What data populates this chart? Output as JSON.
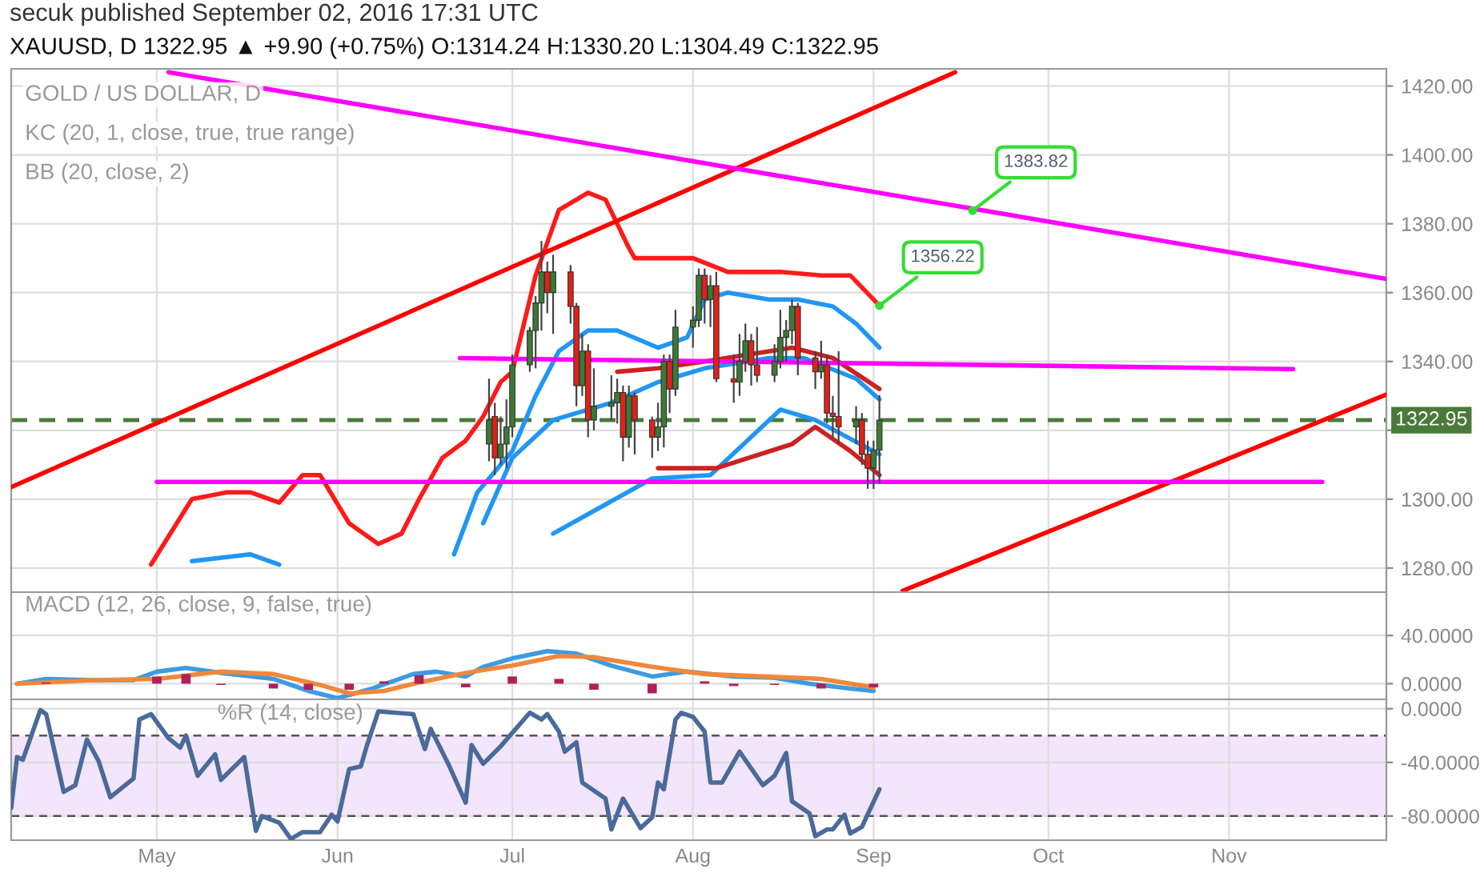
{
  "chart_data": [
    {
      "type": "candlestick",
      "title": "secuk published September 02, 2016 17:31 UTC",
      "subtitle": "XAUUSD, D 1322.95 ▲ +9.90 (+0.75%) O:1314.24 H:1330.20 L:1304.49 C:1322.95",
      "annotations": [
        "GOLD / US DOLLAR, D",
        "KC (20, 1, close, true, true range)",
        "BB (20, close, 2)",
        {
          "text": "1356.22",
          "x": "2016-09-02",
          "y": 1356.22
        },
        {
          "text": "1383.82",
          "x": "2016-09-18",
          "y": 1383.82
        }
      ],
      "x": [
        "2016-06-27",
        "2016-06-28",
        "2016-06-29",
        "2016-06-30",
        "2016-07-01",
        "2016-07-04",
        "2016-07-05",
        "2016-07-06",
        "2016-07-07",
        "2016-07-08",
        "2016-07-11",
        "2016-07-12",
        "2016-07-13",
        "2016-07-14",
        "2016-07-15",
        "2016-07-18",
        "2016-07-19",
        "2016-07-20",
        "2016-07-21",
        "2016-07-22",
        "2016-07-25",
        "2016-07-26",
        "2016-07-27",
        "2016-07-28",
        "2016-07-29",
        "2016-08-01",
        "2016-08-02",
        "2016-08-03",
        "2016-08-04",
        "2016-08-05",
        "2016-08-08",
        "2016-08-09",
        "2016-08-10",
        "2016-08-11",
        "2016-08-12",
        "2016-08-15",
        "2016-08-16",
        "2016-08-17",
        "2016-08-18",
        "2016-08-19",
        "2016-08-22",
        "2016-08-23",
        "2016-08-24",
        "2016-08-25",
        "2016-08-26",
        "2016-08-29",
        "2016-08-30",
        "2016-08-31",
        "2016-09-01",
        "2016-09-02"
      ],
      "ohlc": [
        [
          1316,
          1335,
          1311,
          1323
        ],
        [
          1324,
          1328,
          1307,
          1312
        ],
        [
          1312,
          1324,
          1310,
          1316
        ],
        [
          1316,
          1329,
          1309,
          1321
        ],
        [
          1321,
          1342,
          1318,
          1339
        ],
        [
          1339,
          1350,
          1337,
          1349
        ],
        [
          1349,
          1359,
          1338,
          1357
        ],
        [
          1357,
          1375,
          1349,
          1366
        ],
        [
          1366,
          1369,
          1354,
          1360
        ],
        [
          1360,
          1371,
          1348,
          1366
        ],
        [
          1366,
          1368,
          1351,
          1356
        ],
        [
          1356,
          1357,
          1327,
          1333
        ],
        [
          1333,
          1348,
          1330,
          1343
        ],
        [
          1343,
          1345,
          1318,
          1323
        ],
        [
          1323,
          1338,
          1320,
          1327
        ],
        [
          1327,
          1336,
          1323,
          1328
        ],
        [
          1328,
          1335,
          1322,
          1331
        ],
        [
          1331,
          1333,
          1311,
          1318
        ],
        [
          1318,
          1333,
          1315,
          1330
        ],
        [
          1330,
          1331,
          1313,
          1323
        ],
        [
          1323,
          1324,
          1312,
          1318
        ],
        [
          1318,
          1328,
          1314,
          1321
        ],
        [
          1321,
          1342,
          1315,
          1340
        ],
        [
          1340,
          1342,
          1325,
          1332
        ],
        [
          1332,
          1355,
          1330,
          1350
        ],
        [
          1350,
          1356,
          1344,
          1352
        ],
        [
          1352,
          1367,
          1350,
          1365
        ],
        [
          1365,
          1367,
          1351,
          1358
        ],
        [
          1358,
          1365,
          1350,
          1362
        ],
        [
          1362,
          1366,
          1334,
          1335
        ],
        [
          1335,
          1342,
          1328,
          1334
        ],
        [
          1334,
          1348,
          1330,
          1340
        ],
        [
          1340,
          1351,
          1337,
          1346
        ],
        [
          1346,
          1348,
          1333,
          1339
        ],
        [
          1339,
          1350,
          1334,
          1336
        ],
        [
          1336,
          1345,
          1334,
          1340
        ],
        [
          1340,
          1355,
          1338,
          1347
        ],
        [
          1347,
          1352,
          1340,
          1349
        ],
        [
          1349,
          1358,
          1345,
          1356
        ],
        [
          1356,
          1357,
          1336,
          1341
        ],
        [
          1341,
          1343,
          1332,
          1337
        ],
        [
          1337,
          1346,
          1335,
          1339
        ],
        [
          1339,
          1342,
          1322,
          1325
        ],
        [
          1325,
          1330,
          1318,
          1324
        ],
        [
          1324,
          1343,
          1316,
          1321
        ],
        [
          1321,
          1327,
          1316,
          1323
        ],
        [
          1323,
          1325,
          1310,
          1313
        ],
        [
          1313,
          1317,
          1303,
          1309
        ],
        [
          1309,
          1317,
          1303,
          1314.24
        ],
        [
          1314.24,
          1330.2,
          1304.49,
          1322.95
        ]
      ],
      "colors": [
        "#3c7a34",
        "#e32017",
        "#3c7a34",
        "#3c7a34",
        "#3c7a34",
        "#3c7a34",
        "#3c7a34",
        "#3c7a34",
        "#e32017",
        "#3c7a34",
        "#e32017",
        "#e32017",
        "#3c7a34",
        "#e32017",
        "#3c7a34",
        "#3c7a34",
        "#3c7a34",
        "#e32017",
        "#3c7a34",
        "#e32017",
        "#e32017",
        "#3c7a34",
        "#3c7a34",
        "#e32017",
        "#3c7a34",
        "#3c7a34",
        "#3c7a34",
        "#e32017",
        "#3c7a34",
        "#e32017",
        "#e32017",
        "#3c7a34",
        "#3c7a34",
        "#e32017",
        "#e32017",
        "#3c7a34",
        "#3c7a34",
        "#3c7a34",
        "#3c7a34",
        "#e32017",
        "#e32017",
        "#3c7a34",
        "#e32017",
        "#e32017",
        "#e32017",
        "#3c7a34",
        "#e32017",
        "#e32017",
        "#3c7a34",
        "#3c7a34"
      ],
      "series": [
        {
          "type": "line",
          "color": "#ff1a1a",
          "x": [
            "2016-04-30",
            "2016-05-07",
            "2016-05-13",
            "2016-05-17",
            "2016-05-22",
            "2016-05-26",
            "2016-05-29",
            "2016-06-03",
            "2016-06-08",
            "2016-06-12",
            "2016-06-15",
            "2016-06-19",
            "2016-06-23",
            "2016-06-26",
            "2016-06-29",
            "2016-07-01",
            "2016-07-05",
            "2016-07-09",
            "2016-07-14",
            "2016-07-17",
            "2016-07-21",
            "2016-07-22",
            "2016-08-01",
            "2016-08-07",
            "2016-08-16",
            "2016-08-23",
            "2016-08-28",
            "2016-09-02"
          ],
          "values": [
            1281,
            1300,
            1302,
            1302,
            1299,
            1307,
            1307,
            1293,
            1287,
            1290,
            1300,
            1312,
            1317,
            1324,
            1334,
            1337,
            1365,
            1384,
            1389,
            1387,
            1373,
            1370,
            1370,
            1366,
            1366,
            1365,
            1365,
            1356.22
          ]
        },
        {
          "type": "line",
          "color": "#2196f3",
          "x": [
            "2016-05-07",
            "2016-05-17",
            "2016-05-22",
            "2016-06-01",
            "2016-06-21",
            "2016-06-25",
            "2016-06-29",
            "2016-07-01",
            "2016-07-05",
            "2016-07-09",
            "2016-07-14",
            "2016-07-19",
            "2016-07-26",
            "2016-07-31",
            "2016-08-03",
            "2016-08-07",
            "2016-08-14",
            "2016-08-19",
            "2016-08-25",
            "2016-08-29",
            "2016-09-02"
          ],
          "values": [
            1282,
            1284,
            1281,
            null,
            1284,
            1302,
            1310,
            1314,
            1330,
            1343,
            1349,
            1349,
            1344,
            1347,
            1358,
            1360,
            1358,
            1358,
            1356,
            1351,
            1344
          ]
        },
        {
          "type": "line",
          "color": "#2196f3",
          "x": [
            "2016-06-26",
            "2016-07-01",
            "2016-07-08",
            "2016-07-18",
            "2016-07-26",
            "2016-08-03",
            "2016-08-14",
            "2016-08-20",
            "2016-08-29",
            "2016-09-02"
          ],
          "values": [
            1293,
            1312,
            1323,
            1328,
            1334,
            1338,
            1341,
            1341,
            1335,
            1329
          ]
        },
        {
          "type": "line",
          "color": "#2196f3",
          "x": [
            "2016-07-08",
            "2016-07-25",
            "2016-08-04",
            "2016-08-16",
            "2016-08-22",
            "2016-09-02"
          ],
          "values": [
            1290,
            1306,
            1307,
            1326,
            1323,
            1313
          ]
        },
        {
          "type": "line",
          "color": "#cc2222",
          "x": [
            "2016-07-19",
            "2016-07-26",
            "2016-08-03",
            "2016-08-18",
            "2016-08-25",
            "2016-09-02"
          ],
          "values": [
            1337,
            1338,
            1340,
            1344,
            1341,
            1332
          ]
        },
        {
          "type": "line",
          "color": "#cc2222",
          "x": [
            "2016-07-26",
            "2016-08-05",
            "2016-08-18",
            "2016-08-22",
            "2016-08-28",
            "2016-09-02"
          ],
          "values": [
            1309,
            1309,
            1316,
            1321,
            1314,
            1307
          ]
        },
        {
          "type": "line",
          "color": "#ff0000",
          "x": [
            "2016-04-06",
            "2016-09-15"
          ],
          "values": [
            1303.5,
            1424
          ]
        },
        {
          "type": "line",
          "color": "#ff0000",
          "x": [
            "2016-09-06",
            "2016-11-28"
          ],
          "values": [
            1273.4,
            1330.4
          ]
        },
        {
          "type": "line",
          "color": "#ff00ff",
          "x": [
            "2016-05-03",
            "2016-11-28"
          ],
          "values": [
            1424,
            1364
          ]
        },
        {
          "type": "line",
          "color": "#ff00ff",
          "x": [
            "2016-06-22",
            "2016-11-12"
          ],
          "values": [
            1341,
            1337.8
          ]
        },
        {
          "type": "line",
          "color": "#ff00ff",
          "x": [
            "2016-05-01",
            "2016-11-17"
          ],
          "values": [
            1305,
            1305
          ]
        }
      ],
      "ref_lines": [
        {
          "axis": "y",
          "value": 1322.95,
          "label": "1322.95",
          "color": "#4a7a3a",
          "line_style": "dashed"
        }
      ],
      "xlim": [
        "2016-04-06",
        "2016-11-28"
      ],
      "ylim": [
        1273,
        1425
      ],
      "yticks": [
        {
          "value": 1280,
          "label": "1280.00"
        },
        {
          "value": 1300,
          "label": "1300.00"
        },
        {
          "value": 1320,
          "label": null
        },
        {
          "value": 1340,
          "label": "1340.00"
        },
        {
          "value": 1360,
          "label": "1360.00"
        },
        {
          "value": 1380,
          "label": "1380.00"
        },
        {
          "value": 1400,
          "label": "1400.00"
        },
        {
          "value": 1420,
          "label": "1420.00"
        }
      ],
      "xticks": [
        {
          "value": "2016-05-01",
          "label": null
        },
        {
          "value": "2016-06-01",
          "label": null
        },
        {
          "value": "2016-07-01",
          "label": null
        },
        {
          "value": "2016-08-01",
          "label": null
        },
        {
          "value": "2016-09-01",
          "label": null
        },
        {
          "value": "2016-10-01",
          "label": null
        },
        {
          "value": "2016-11-01",
          "label": null
        }
      ],
      "tick_labels": "y",
      "grid": true
    },
    {
      "type": "line",
      "annotations": [
        "MACD (12, 26, close, 9, false, true)"
      ],
      "series": [
        {
          "type": "bar",
          "color": "#b0205a",
          "x": [
            "2016-04-12",
            "2016-05-01",
            "2016-05-06",
            "2016-05-12",
            "2016-05-21",
            "2016-05-27",
            "2016-06-03",
            "2016-06-09",
            "2016-06-15",
            "2016-06-23",
            "2016-07-01",
            "2016-07-09",
            "2016-07-15",
            "2016-07-25",
            "2016-08-03",
            "2016-08-08",
            "2016-08-15",
            "2016-08-23",
            "2016-09-01"
          ],
          "values": [
            1,
            6,
            8,
            -1,
            -4,
            -5,
            -5,
            2,
            7,
            -3,
            6,
            4,
            -5,
            -8,
            2,
            -2,
            -1,
            -4,
            -3
          ]
        },
        {
          "type": "line",
          "color": "#3d9be0",
          "x": [
            "2016-04-07",
            "2016-04-12",
            "2016-04-20",
            "2016-04-27",
            "2016-05-01",
            "2016-05-06",
            "2016-05-12",
            "2016-05-21",
            "2016-05-27",
            "2016-06-01",
            "2016-06-07",
            "2016-06-14",
            "2016-06-18",
            "2016-06-23",
            "2016-06-26",
            "2016-07-01",
            "2016-07-07",
            "2016-07-12",
            "2016-07-18",
            "2016-07-25",
            "2016-07-31",
            "2016-08-08",
            "2016-08-15",
            "2016-08-21",
            "2016-08-28",
            "2016-09-01"
          ],
          "values": [
            0,
            4,
            3,
            3,
            10,
            13,
            9,
            4,
            -6,
            -12,
            -4,
            8,
            10,
            6,
            14,
            21,
            27,
            25,
            15,
            6,
            10,
            6,
            5,
            0,
            -4,
            -6
          ]
        },
        {
          "type": "line",
          "color": "#f0883a",
          "x": [
            "2016-04-07",
            "2016-04-20",
            "2016-05-01",
            "2016-05-12",
            "2016-05-21",
            "2016-05-29",
            "2016-06-03",
            "2016-06-09",
            "2016-06-15",
            "2016-06-23",
            "2016-07-01",
            "2016-07-09",
            "2016-07-15",
            "2016-07-25",
            "2016-08-03",
            "2016-08-13",
            "2016-08-23",
            "2016-09-01"
          ],
          "values": [
            0,
            3,
            4,
            10,
            8,
            -1,
            -8,
            -6,
            1,
            9,
            15,
            23,
            22,
            14,
            8,
            6,
            4,
            -3
          ]
        }
      ],
      "xlim": [
        "2016-04-06",
        "2016-11-28"
      ],
      "ylim": [
        -13,
        76
      ],
      "yticks": [
        {
          "value": 0,
          "label": "0.0000"
        },
        {
          "value": 40,
          "label": "40.0000"
        }
      ],
      "xticks": [
        {
          "value": "2016-05-01",
          "label": null
        },
        {
          "value": "2016-06-01",
          "label": null
        },
        {
          "value": "2016-07-01",
          "label": null
        },
        {
          "value": "2016-08-01",
          "label": null
        },
        {
          "value": "2016-09-01",
          "label": null
        },
        {
          "value": "2016-10-01",
          "label": null
        },
        {
          "value": "2016-11-01",
          "label": null
        }
      ],
      "tick_labels": "y",
      "grid": true
    },
    {
      "type": "line",
      "annotations": [
        "%R (14, close)"
      ],
      "series": [
        {
          "type": "line",
          "color": "#4a6a9a",
          "x": [
            "2016-04-06",
            "2016-04-07",
            "2016-04-08",
            "2016-04-11",
            "2016-04-12",
            "2016-04-15",
            "2016-04-17",
            "2016-04-19",
            "2016-04-21",
            "2016-04-23",
            "2016-04-27",
            "2016-04-28",
            "2016-04-30",
            "2016-05-03",
            "2016-05-05",
            "2016-05-06",
            "2016-05-08",
            "2016-05-11",
            "2016-05-12",
            "2016-05-16",
            "2016-05-18",
            "2016-05-19",
            "2016-05-22",
            "2016-05-24",
            "2016-05-26",
            "2016-05-29",
            "2016-05-31",
            "2016-06-01",
            "2016-06-03",
            "2016-06-05",
            "2016-06-06",
            "2016-06-08",
            "2016-06-14",
            "2016-06-16",
            "2016-06-17",
            "2016-06-20",
            "2016-06-23",
            "2016-06-24",
            "2016-06-26",
            "2016-06-29",
            "2016-07-01",
            "2016-07-04",
            "2016-07-06",
            "2016-07-07",
            "2016-07-09",
            "2016-07-10",
            "2016-07-12",
            "2016-07-13",
            "2016-07-17",
            "2016-07-18",
            "2016-07-20",
            "2016-07-23",
            "2016-07-25",
            "2016-07-26",
            "2016-07-27",
            "2016-07-29",
            "2016-07-30",
            "2016-08-01",
            "2016-08-03",
            "2016-08-04",
            "2016-08-06",
            "2016-08-09",
            "2016-08-13",
            "2016-08-15",
            "2016-08-17",
            "2016-08-18",
            "2016-08-21",
            "2016-08-22",
            "2016-08-24",
            "2016-08-25",
            "2016-08-27",
            "2016-08-28",
            "2016-08-30",
            "2016-09-02"
          ],
          "values": [
            -74,
            -36,
            -38,
            -1,
            -4,
            -62,
            -57,
            -23,
            -39,
            -66,
            -52,
            -8,
            -4,
            -22,
            -29,
            -20,
            -50,
            -34,
            -53,
            -36,
            -91,
            -80,
            -85,
            -97,
            -92,
            -92,
            -79,
            -84,
            -45,
            -43,
            -28,
            -2,
            -4,
            -30,
            -15,
            -41,
            -70,
            -27,
            -41,
            -28,
            -18,
            -3,
            -8,
            -4,
            -17,
            -32,
            -25,
            -55,
            -67,
            -90,
            -67,
            -89,
            -81,
            -55,
            -60,
            -8,
            -3,
            -6,
            -17,
            -55,
            -55,
            -32,
            -57,
            -50,
            -33,
            -69,
            -78,
            -95,
            -90,
            -90,
            -79,
            -93,
            -88,
            -60
          ]
        }
      ],
      "ref_lines": [
        {
          "axis": "y",
          "value": -20,
          "color": "#555555",
          "line_style": "dashed"
        },
        {
          "axis": "y",
          "value": -80,
          "color": "#555555",
          "line_style": "dashed"
        }
      ],
      "bands": [
        {
          "axis": "y",
          "from": -80,
          "to": -20,
          "color": "#f3e5fb"
        }
      ],
      "xlim": [
        "2016-04-06",
        "2016-11-28"
      ],
      "ylim": [
        -98,
        7
      ],
      "yticks": [
        {
          "value": 0,
          "label": "0.0000"
        },
        {
          "value": -40,
          "label": "-40.0000"
        },
        {
          "value": -80,
          "label": "-80.0000"
        }
      ],
      "xticks": [
        {
          "value": "2016-05-01",
          "label": "May"
        },
        {
          "value": "2016-06-01",
          "label": "Jun"
        },
        {
          "value": "2016-07-01",
          "label": "Jul"
        },
        {
          "value": "2016-08-01",
          "label": "Aug"
        },
        {
          "value": "2016-09-01",
          "label": "Sep"
        },
        {
          "value": "2016-10-01",
          "label": "Oct"
        },
        {
          "value": "2016-11-01",
          "label": "Nov"
        }
      ],
      "grid": true
    }
  ]
}
